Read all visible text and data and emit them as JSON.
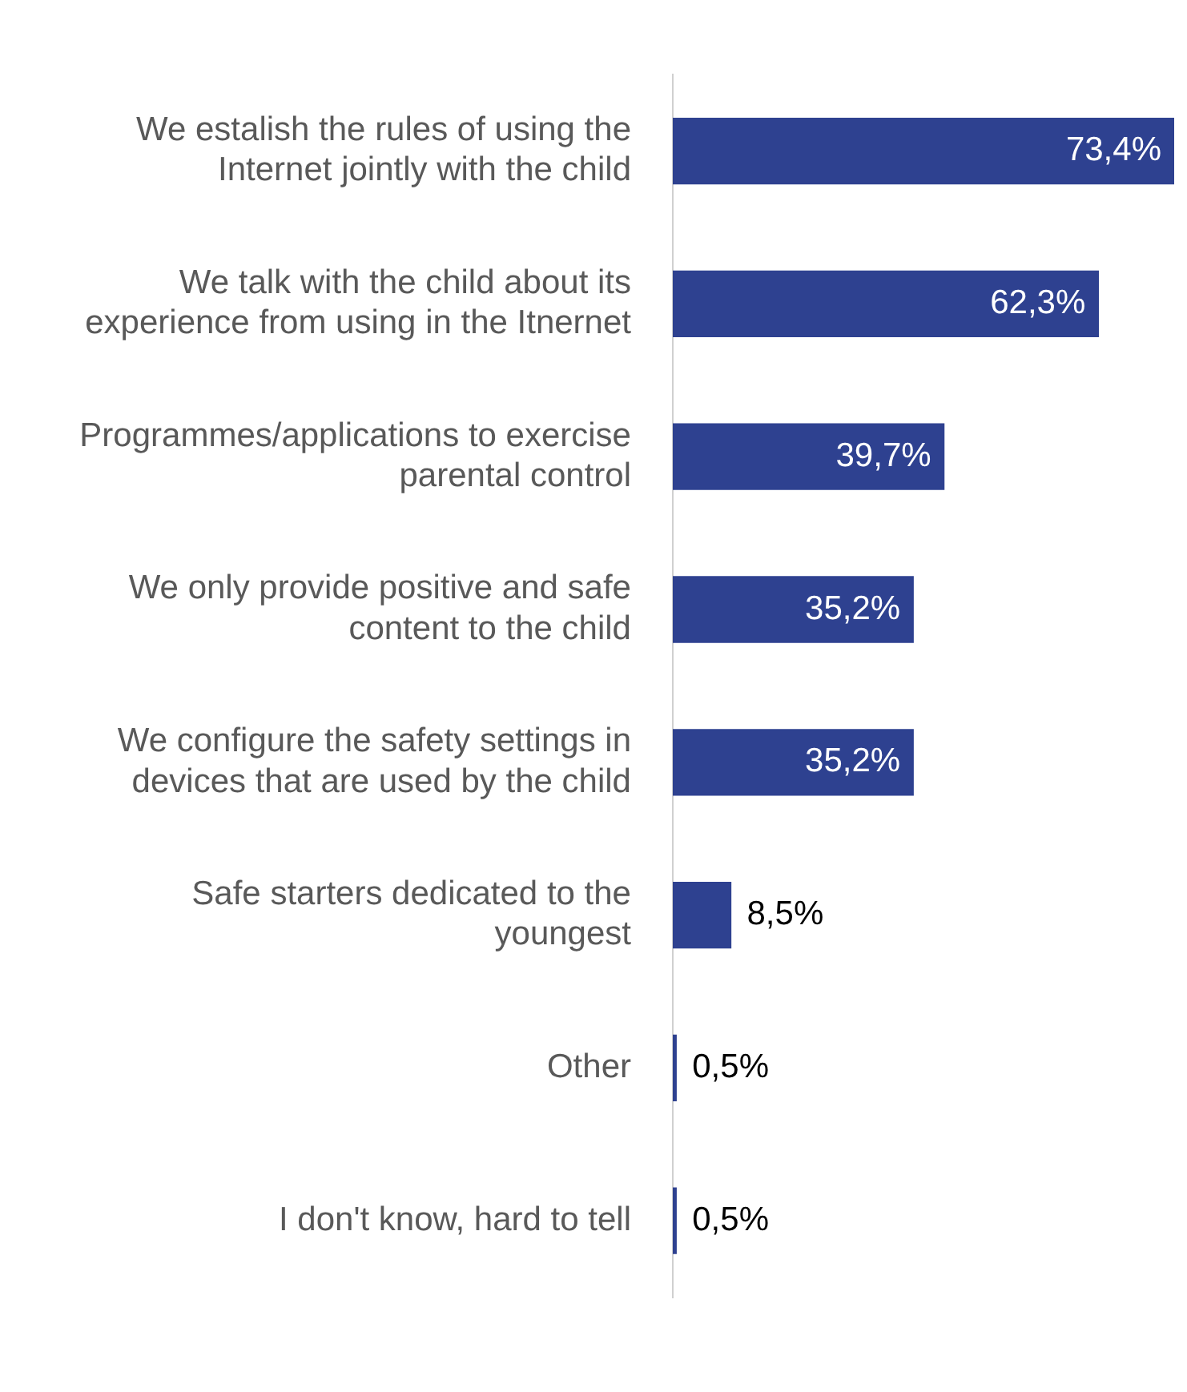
{
  "chart_data": {
    "type": "bar",
    "orientation": "horizontal",
    "categories": [
      "We estalish the rules of using the Internet jointly with the child",
      "We talk with the child about its experience from using in the Itnernet",
      "Programmes/applications to exercise parental control",
      "We only provide positive and safe content to the child",
      "We configure the safety settings in devices that are used by the child",
      "Safe starters dedicated to the youngest",
      "Other",
      "I don't know, hard to tell"
    ],
    "values": [
      73.4,
      62.3,
      39.7,
      35.2,
      35.2,
      8.5,
      0.5,
      0.5
    ],
    "value_labels": [
      "73,4%",
      "62,3%",
      "39,7%",
      "35,2%",
      "35,2%",
      "8,5%",
      "0,5%",
      "0,5%"
    ],
    "color": "#2e4190"
  }
}
